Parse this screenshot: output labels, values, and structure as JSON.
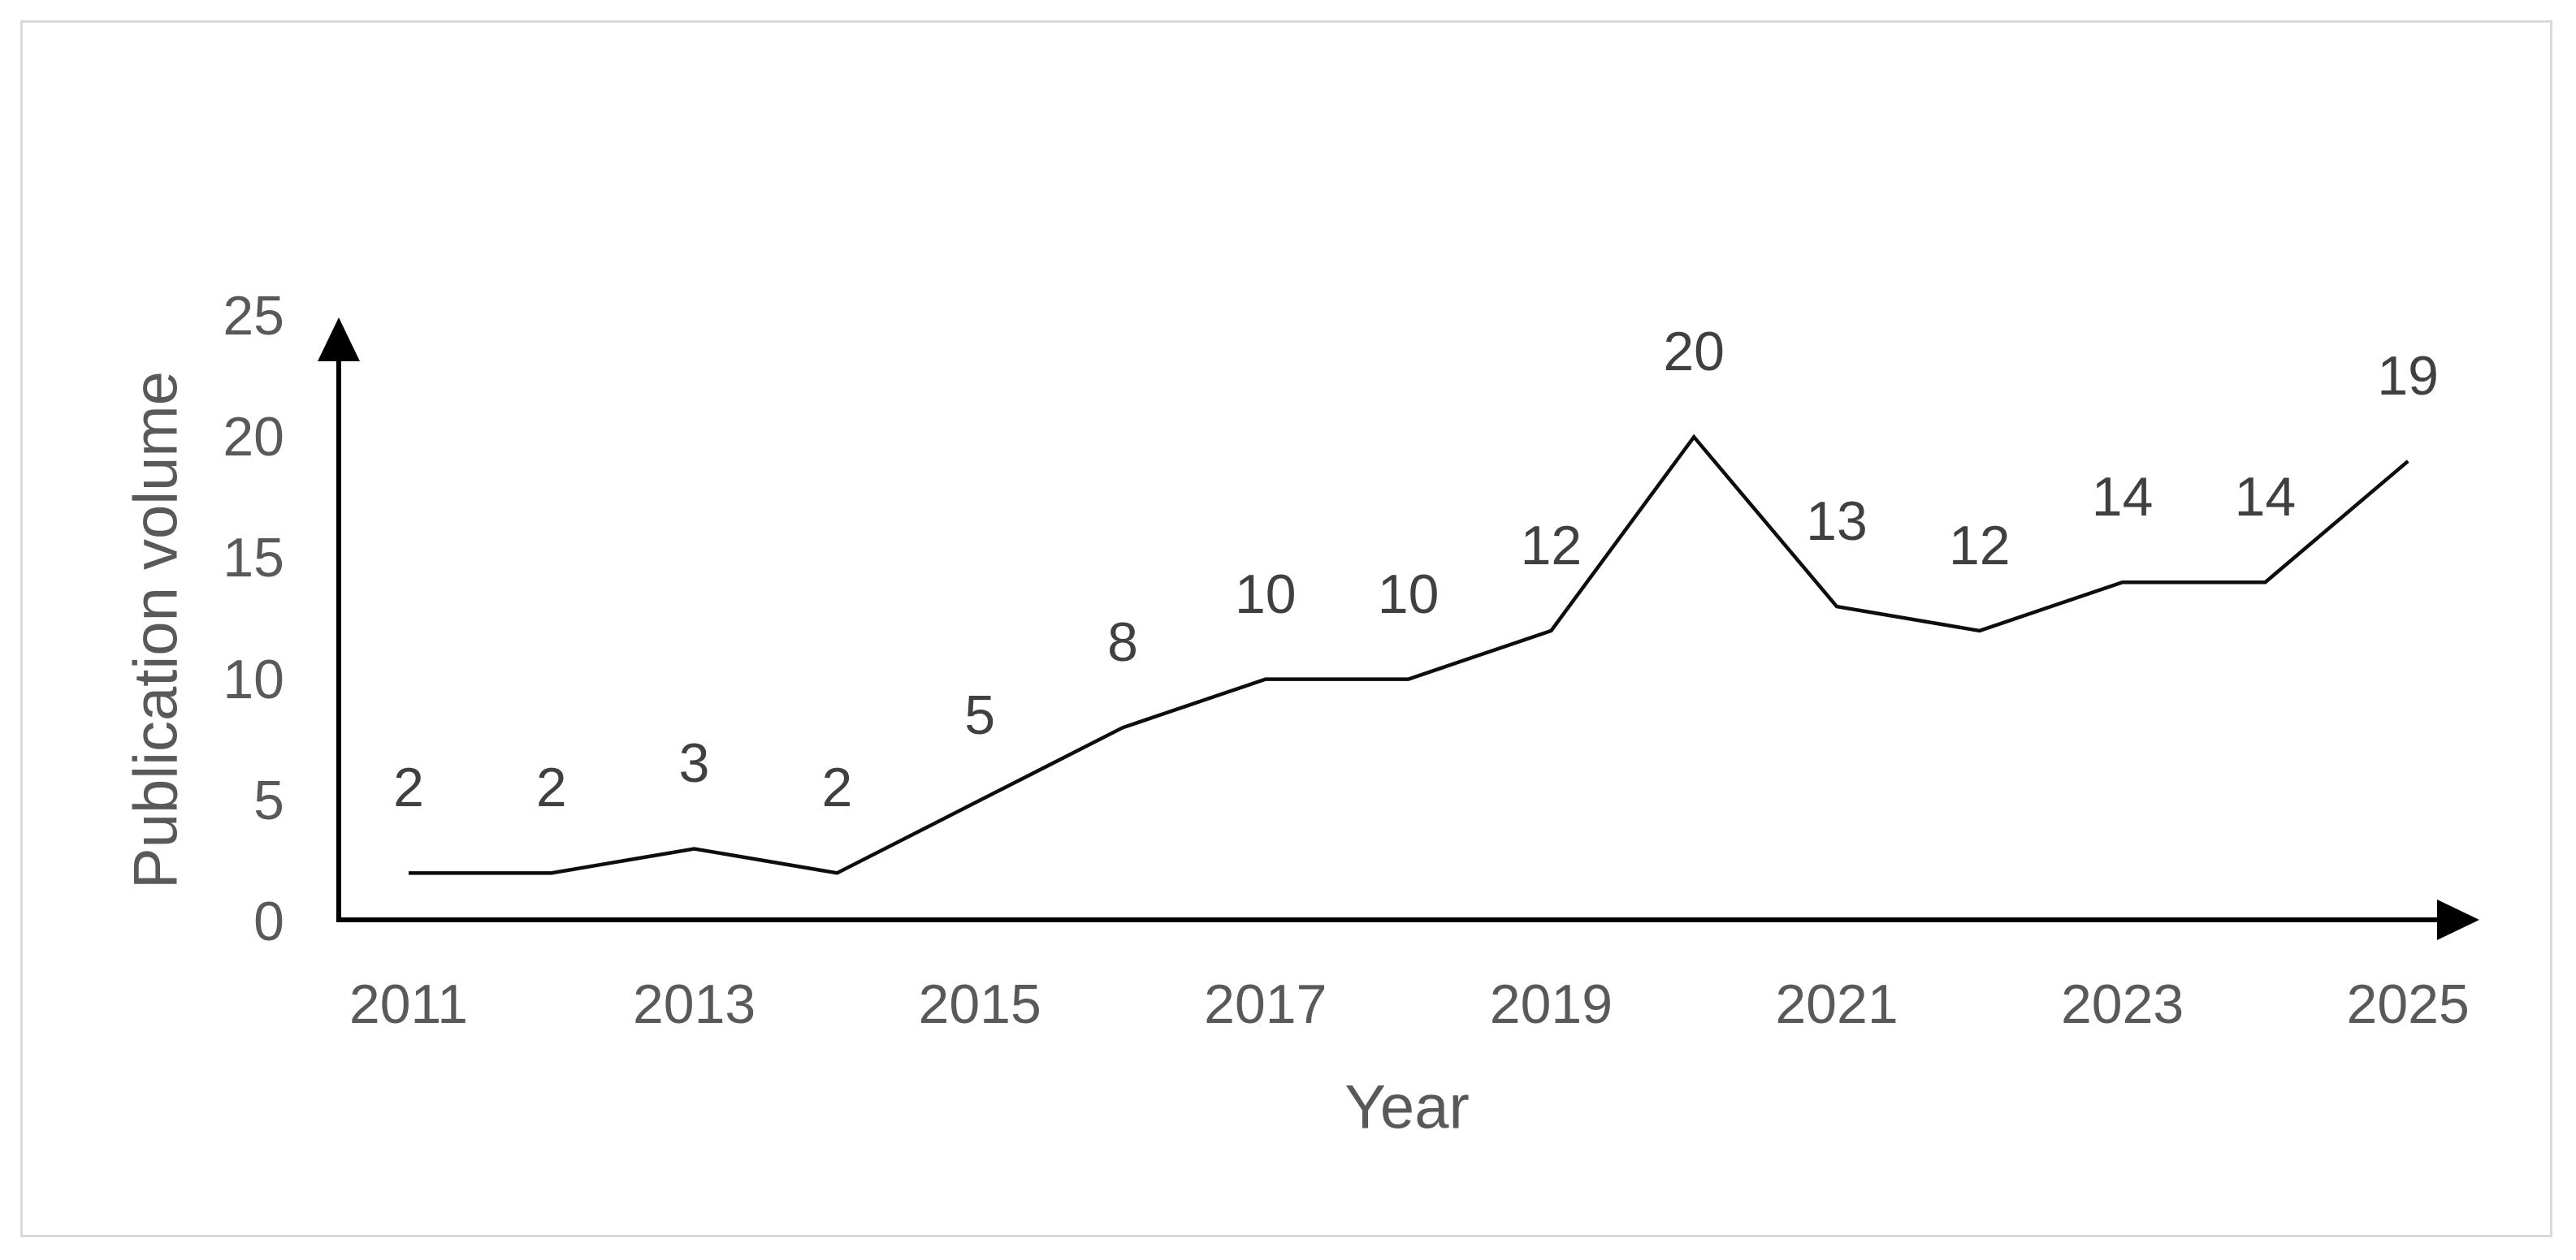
{
  "chart_data": {
    "type": "line",
    "title": "",
    "xlabel": "Year",
    "ylabel": "Publication volume",
    "x": [
      2011,
      2012,
      2013,
      2014,
      2015,
      2016,
      2017,
      2018,
      2019,
      2020,
      2021,
      2022,
      2023,
      2024,
      2025
    ],
    "values": [
      2,
      2,
      3,
      2,
      5,
      8,
      10,
      10,
      12,
      20,
      13,
      12,
      14,
      14,
      19
    ],
    "data_labels_shown": true,
    "xticks": [
      2011,
      2013,
      2015,
      2017,
      2019,
      2021,
      2023,
      2025
    ],
    "yticks": [
      0,
      5,
      10,
      15,
      20,
      25
    ],
    "ylim": [
      0,
      25
    ],
    "grid": false,
    "legend": false,
    "line_color": "#0d0d0d",
    "axis_color": "#000000",
    "tick_label_color": "#595959",
    "data_label_color": "#404040",
    "axis_title_color": "#595959",
    "frame_border_color": "#d9d9d9",
    "background_color": "#ffffff"
  }
}
